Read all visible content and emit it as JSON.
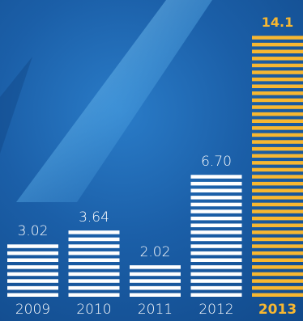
{
  "chart_data": {
    "type": "bar",
    "categories": [
      "2009",
      "2010",
      "2011",
      "2012",
      "2013"
    ],
    "values": [
      3.02,
      3.64,
      2.02,
      6.7,
      14.1
    ],
    "value_labels": [
      "3.02",
      "3.64",
      "2.02",
      "6.70",
      "14.1"
    ],
    "highlight_index": 4,
    "bar_style": "horizontal-stripes",
    "ylim": [
      0,
      14.1
    ],
    "grid": false,
    "legend": "none"
  },
  "colors": {
    "background": "#1b5fa8",
    "bar": "#ffffff",
    "highlight": "#f7b731",
    "beam": "#8fd3ff"
  }
}
